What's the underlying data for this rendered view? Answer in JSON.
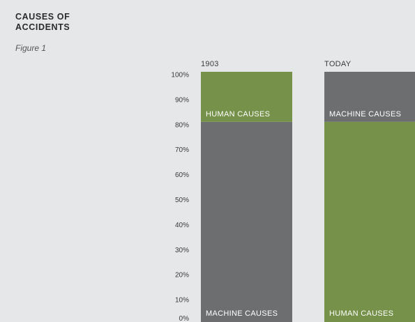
{
  "chart_data": {
    "type": "bar",
    "stacked": true,
    "title": "CAUSES OF ACCIDENTS",
    "subtitle": "Figure 1",
    "categories": [
      "1903",
      "TODAY"
    ],
    "series": [
      {
        "name": "MACHINE CAUSES",
        "color": "#6d6e70",
        "values": [
          80,
          20
        ]
      },
      {
        "name": "HUMAN CAUSES",
        "color": "#76924a",
        "values": [
          20,
          80
        ]
      }
    ],
    "stack_order": [
      [
        "MACHINE CAUSES",
        "HUMAN CAUSES"
      ],
      [
        "HUMAN CAUSES",
        "MACHINE CAUSES"
      ]
    ],
    "ylim": [
      0,
      100
    ],
    "yticks": [
      "0%",
      "10%",
      "20%",
      "30%",
      "40%",
      "50%",
      "60%",
      "70%",
      "80%",
      "90%",
      "100%"
    ],
    "xlabel": "",
    "ylabel": "",
    "grid": false,
    "legend": "none"
  }
}
